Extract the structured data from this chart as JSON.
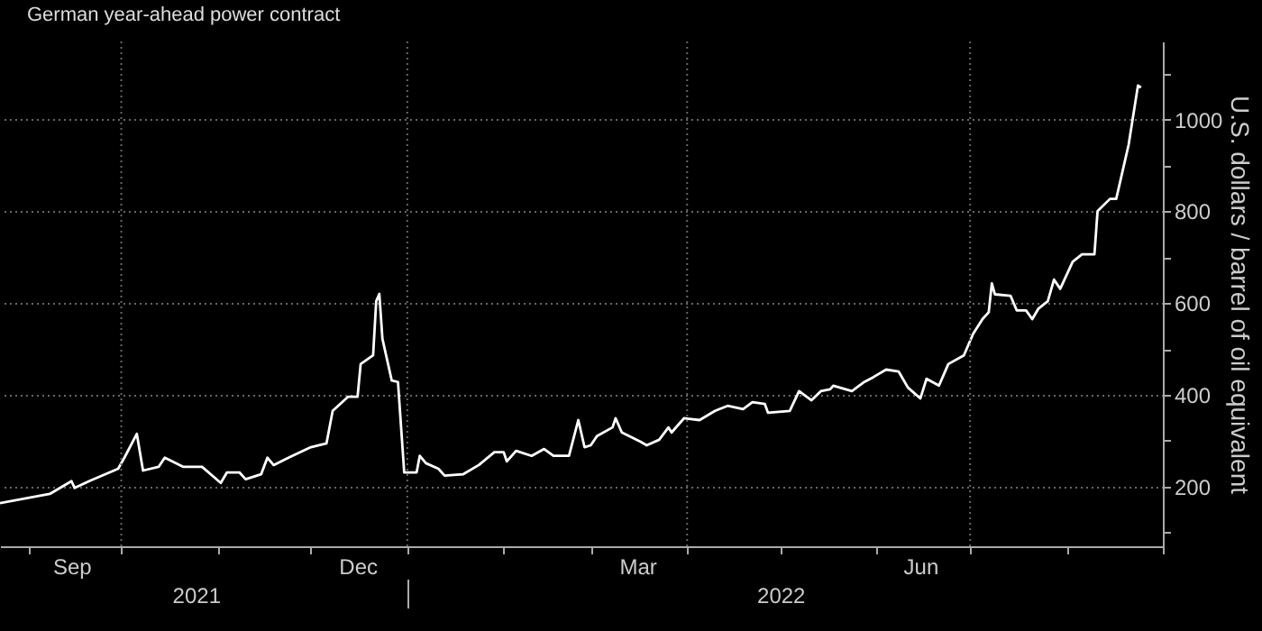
{
  "chart_data": {
    "type": "line",
    "ylabel": "U.S. dollars / barrel of oil equivalent",
    "legend": "top left",
    "grid": "y",
    "line_style": "solid",
    "xlim": [
      "2021-08-23",
      "2022-09-01"
    ],
    "ylim": [
      70,
      1170
    ],
    "xticks": [
      {
        "value": "2021-09-01",
        "label": null
      },
      {
        "value": "2021-09-15",
        "label": "Sep"
      },
      {
        "value": "2021-10-01",
        "label": null
      },
      {
        "value": "2021-11-01",
        "label": null
      },
      {
        "value": "2021-12-01",
        "label": null
      },
      {
        "value": "2021-12-16",
        "label": "Dec"
      },
      {
        "value": "2022-01-01",
        "label": null
      },
      {
        "value": "2022-02-01",
        "label": null
      },
      {
        "value": "2022-03-01",
        "label": null
      },
      {
        "value": "2022-03-16",
        "label": "Mar"
      },
      {
        "value": "2022-04-01",
        "label": null
      },
      {
        "value": "2022-05-01",
        "label": null
      },
      {
        "value": "2022-06-01",
        "label": null
      },
      {
        "value": "2022-06-15",
        "label": "Jun"
      },
      {
        "value": "2022-07-01",
        "label": null
      },
      {
        "value": "2022-08-01",
        "label": null
      },
      {
        "value": "2022-09-01",
        "label": null
      }
    ],
    "x2lim": [
      "2021-08-23",
      "2022-09-01"
    ],
    "x2ticks": [
      {
        "value": "2021-10-25",
        "label": "2021"
      },
      {
        "value": "2022-01-01",
        "label": null
      },
      {
        "value": "2022-05-01",
        "label": "2022"
      }
    ],
    "yticks": [
      {
        "value": 100,
        "label": null
      },
      200,
      {
        "value": 300,
        "label": null
      },
      400,
      {
        "value": 500,
        "label": null
      },
      600,
      {
        "value": 700,
        "label": null
      },
      800,
      {
        "value": 900,
        "label": null
      },
      1000,
      {
        "value": 1100,
        "label": null
      }
    ],
    "ref_lines": [
      {
        "axis": "x",
        "value": "2021-10-01",
        "label": null,
        "color": "#666666",
        "line_style": "dotted"
      },
      {
        "axis": "x",
        "value": "2022-01-01",
        "label": null,
        "color": "#666666",
        "line_style": "dotted"
      },
      {
        "axis": "x",
        "value": "2022-04-01",
        "label": null,
        "color": "#666666",
        "line_style": "dotted"
      },
      {
        "axis": "x",
        "value": "2022-07-01",
        "label": null,
        "color": "#666666",
        "line_style": "dotted"
      }
    ],
    "x": [
      "2021-08-23",
      "2021-09-08",
      "2021-09-15",
      "2021-09-16",
      "2021-09-21",
      "2021-09-30",
      "2021-10-02",
      "2021-10-06",
      "2021-10-08",
      "2021-10-13",
      "2021-10-15",
      "2021-10-21",
      "2021-10-27",
      "2021-11-02",
      "2021-11-04",
      "2021-11-08",
      "2021-11-10",
      "2021-11-15",
      "2021-11-17",
      "2021-11-19",
      "2021-11-25",
      "2021-12-01",
      "2021-12-06",
      "2021-12-08",
      "2021-12-13",
      "2021-12-16",
      "2021-12-17",
      "2021-12-21",
      "2021-12-22",
      "2021-12-23",
      "2021-12-24",
      "2021-12-27",
      "2021-12-29",
      "2021-12-31",
      "2022-01-04",
      "2022-01-05",
      "2022-01-07",
      "2022-01-11",
      "2022-01-13",
      "2022-01-19",
      "2022-01-24",
      "2022-01-29",
      "2022-02-01",
      "2022-02-02",
      "2022-02-05",
      "2022-02-10",
      "2022-02-14",
      "2022-02-17",
      "2022-02-22",
      "2022-02-25",
      "2022-02-27",
      "2022-03-01",
      "2022-03-03",
      "2022-03-08",
      "2022-03-09",
      "2022-03-11",
      "2022-03-17",
      "2022-03-19",
      "2022-03-23",
      "2022-03-26",
      "2022-03-27",
      "2022-03-31",
      "2022-04-05",
      "2022-04-10",
      "2022-04-14",
      "2022-04-19",
      "2022-04-22",
      "2022-04-26",
      "2022-04-27",
      "2022-05-04",
      "2022-05-07",
      "2022-05-11",
      "2022-05-14",
      "2022-05-17",
      "2022-05-18",
      "2022-05-24",
      "2022-05-28",
      "2022-05-31",
      "2022-06-04",
      "2022-06-08",
      "2022-06-11",
      "2022-06-15",
      "2022-06-17",
      "2022-06-21",
      "2022-06-24",
      "2022-06-29",
      "2022-07-02",
      "2022-07-05",
      "2022-07-07",
      "2022-07-08",
      "2022-07-09",
      "2022-07-14",
      "2022-07-16",
      "2022-07-19",
      "2022-07-21",
      "2022-07-23",
      "2022-07-26",
      "2022-07-28",
      "2022-07-30",
      "2022-08-03",
      "2022-08-06",
      "2022-08-10",
      "2022-08-11",
      "2022-08-15",
      "2022-08-17",
      "2022-08-19",
      "2022-08-21",
      "2022-08-24",
      "2022-08-25"
    ],
    "series": [
      {
        "name": "German year-ahead power contract",
        "color": "#ffffff",
        "values": [
          164,
          184,
          212,
          197,
          213,
          239,
          263,
          315,
          235,
          243,
          263,
          243,
          243,
          208,
          231,
          231,
          216,
          227,
          263,
          247,
          267,
          286,
          294,
          365,
          396,
          396,
          467,
          486,
          604,
          620,
          522,
          431,
          428,
          231,
          231,
          267,
          251,
          239,
          224,
          227,
          247,
          275,
          275,
          255,
          278,
          267,
          282,
          267,
          267,
          345,
          286,
          290,
          310,
          329,
          349,
          318,
          298,
          290,
          302,
          329,
          318,
          349,
          345,
          365,
          376,
          369,
          384,
          380,
          361,
          365,
          408,
          388,
          408,
          412,
          420,
          408,
          428,
          439,
          455,
          451,
          416,
          392,
          435,
          420,
          467,
          486,
          533,
          565,
          580,
          643,
          619,
          616,
          584,
          584,
          565,
          588,
          604,
          651,
          631,
          690,
          706,
          706,
          800,
          827,
          827,
          886,
          945,
          1074,
          1070
        ]
      }
    ]
  }
}
